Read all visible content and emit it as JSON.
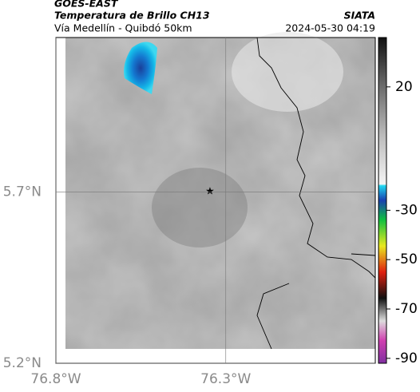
{
  "header": {
    "source": "GOES-EAST",
    "title": "Temperatura de Brillo CH13",
    "subtitle": "Vía Medellín - Quibdó 50km",
    "org": "SIATA",
    "timestamp": "2024-05-30 04:19"
  },
  "map": {
    "lon_range": [
      -76.8,
      -75.86
    ],
    "lat_range": [
      5.2,
      6.15
    ],
    "lon_ticks": [
      {
        "value": -76.8,
        "label": "76.8°W"
      },
      {
        "value": -76.3,
        "label": "76.3°W"
      }
    ],
    "lat_ticks": [
      {
        "value": 5.2,
        "label": "5.2°N"
      },
      {
        "value": 5.7,
        "label": "5.7°N"
      }
    ]
  },
  "colorbar": {
    "limits": [
      40,
      -92
    ],
    "ticks": [
      20,
      -30,
      -50,
      -70,
      -90
    ]
  }
}
